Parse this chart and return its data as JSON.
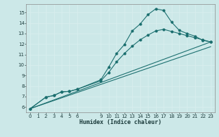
{
  "xlabel": "Humidex (Indice chaleur)",
  "bg_color": "#cce8e8",
  "grid_color": "#e8f8f8",
  "line_color": "#1a6e6e",
  "xlim": [
    -0.5,
    23.5
  ],
  "ylim": [
    5.5,
    15.8
  ],
  "xticks": [
    0,
    1,
    2,
    3,
    4,
    5,
    6,
    9,
    10,
    11,
    12,
    13,
    14,
    15,
    16,
    17,
    18,
    19,
    20,
    21,
    22,
    23
  ],
  "yticks": [
    6,
    7,
    8,
    9,
    10,
    11,
    12,
    13,
    14,
    15
  ],
  "line1_x": [
    0,
    2,
    3,
    4,
    5,
    6,
    9,
    10,
    11,
    12,
    13,
    14,
    15,
    16,
    17,
    18,
    19,
    20,
    21,
    22,
    23
  ],
  "line1_y": [
    5.85,
    6.95,
    7.1,
    7.45,
    7.5,
    7.7,
    8.6,
    9.8,
    11.1,
    11.95,
    13.25,
    13.9,
    14.8,
    15.35,
    15.2,
    14.1,
    13.3,
    13.0,
    12.75,
    12.35,
    12.2
  ],
  "line2_x": [
    0,
    2,
    3,
    4,
    5,
    6,
    9,
    10,
    11,
    12,
    13,
    14,
    15,
    16,
    17,
    18,
    19,
    20,
    21,
    22,
    23
  ],
  "line2_y": [
    5.85,
    6.95,
    7.1,
    7.45,
    7.5,
    7.7,
    8.5,
    9.3,
    10.3,
    11.1,
    11.8,
    12.4,
    12.85,
    13.25,
    13.4,
    13.2,
    13.0,
    12.8,
    12.6,
    12.4,
    12.2
  ],
  "line3_x": [
    0,
    23
  ],
  "line3_y": [
    5.85,
    12.2
  ],
  "line4_x": [
    0,
    23
  ],
  "line4_y": [
    5.85,
    11.75
  ]
}
